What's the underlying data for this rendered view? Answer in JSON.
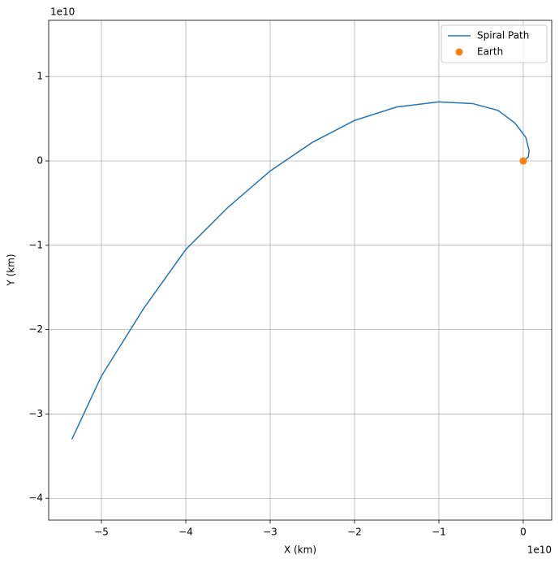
{
  "chart_data": {
    "type": "line",
    "xlabel": "X (km)",
    "ylabel": "Y (km)",
    "x_offset_label": "1e10",
    "y_offset_label": "1e10",
    "xlim": [
      -5.625,
      0.337
    ],
    "ylim": [
      -4.258,
      1.667
    ],
    "xticks": [
      {
        "value": -5,
        "label": "−5"
      },
      {
        "value": -4,
        "label": "−4"
      },
      {
        "value": -3,
        "label": "−3"
      },
      {
        "value": -2,
        "label": "−2"
      },
      {
        "value": -1,
        "label": "−1"
      },
      0
    ],
    "yticks": [
      {
        "value": -4,
        "label": "−4"
      },
      {
        "value": -3,
        "label": "−3"
      },
      {
        "value": -2,
        "label": "−2"
      },
      {
        "value": -1,
        "label": "−1"
      },
      0,
      1
    ],
    "grid": true,
    "legend": "upper-right",
    "series": [
      {
        "name": "Spiral Path",
        "color": "#1f77b4",
        "style": "line",
        "x": [
          -5.35,
          -5,
          -4.5,
          -4,
          -3.5,
          -3,
          -2.5,
          -2,
          -1.5,
          -1,
          -0.6,
          -0.3,
          -0.1,
          0.03,
          0.07,
          0.06,
          0.02,
          0
        ],
        "values": [
          -3.3,
          -2.55,
          -1.75,
          -1.05,
          -0.55,
          -0.12,
          0.22,
          0.48,
          0.64,
          0.7,
          0.68,
          0.6,
          0.45,
          0.28,
          0.12,
          0.05,
          0.01,
          0
        ]
      },
      {
        "name": "Earth",
        "color": "#ff7f0e",
        "style": "marker",
        "x": [
          0
        ],
        "values": [
          0
        ]
      }
    ]
  }
}
